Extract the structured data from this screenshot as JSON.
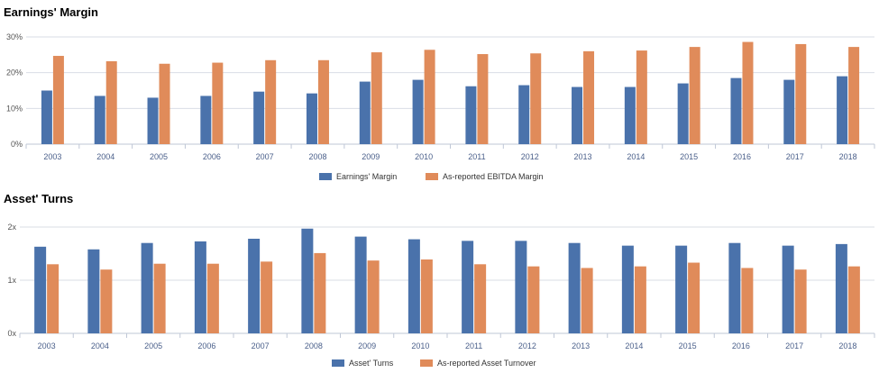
{
  "colors": {
    "series1": "#4a72ab",
    "series2": "#e08b5a",
    "grid": "#d9dde6",
    "axis": "#bfc7d6"
  },
  "chart_data": [
    {
      "type": "bar",
      "title": "Earnings' Margin",
      "categories": [
        "2003",
        "2004",
        "2005",
        "2006",
        "2007",
        "2008",
        "2009",
        "2010",
        "2011",
        "2012",
        "2013",
        "2014",
        "2015",
        "2016",
        "2017",
        "2018"
      ],
      "series": [
        {
          "name": "Earnings' Margin",
          "values": [
            15,
            13.5,
            13,
            13.5,
            14.7,
            14.2,
            17.5,
            18,
            16.2,
            16.5,
            16,
            16,
            17,
            18.5,
            18,
            19
          ]
        },
        {
          "name": "As-reported EBITDA Margin",
          "values": [
            24.7,
            23.2,
            22.5,
            22.8,
            23.5,
            23.5,
            25.7,
            26.4,
            25.2,
            25.4,
            26,
            26.2,
            27.2,
            28.6,
            28,
            27.2
          ]
        }
      ],
      "ylim": [
        0,
        30
      ],
      "yticks": [
        "0%",
        "10%",
        "20%",
        "30%"
      ],
      "grid": true,
      "legend": "bottom-center"
    },
    {
      "type": "bar",
      "title": "Asset' Turns",
      "categories": [
        "2003",
        "2004",
        "2005",
        "2006",
        "2007",
        "2008",
        "2009",
        "2010",
        "2011",
        "2012",
        "2013",
        "2014",
        "2015",
        "2016",
        "2017",
        "2018"
      ],
      "series": [
        {
          "name": "Asset' Turns",
          "values": [
            1.63,
            1.58,
            1.7,
            1.73,
            1.78,
            1.97,
            1.82,
            1.77,
            1.74,
            1.74,
            1.7,
            1.65,
            1.65,
            1.7,
            1.65,
            1.68
          ]
        },
        {
          "name": "As-reported Asset Turnover",
          "values": [
            1.3,
            1.2,
            1.31,
            1.31,
            1.35,
            1.51,
            1.37,
            1.39,
            1.3,
            1.26,
            1.23,
            1.26,
            1.33,
            1.23,
            1.2,
            1.26
          ]
        }
      ],
      "ylim": [
        0,
        2
      ],
      "yticks": [
        "0x",
        "1x",
        "2x"
      ],
      "grid": true,
      "legend": "bottom-center"
    }
  ]
}
